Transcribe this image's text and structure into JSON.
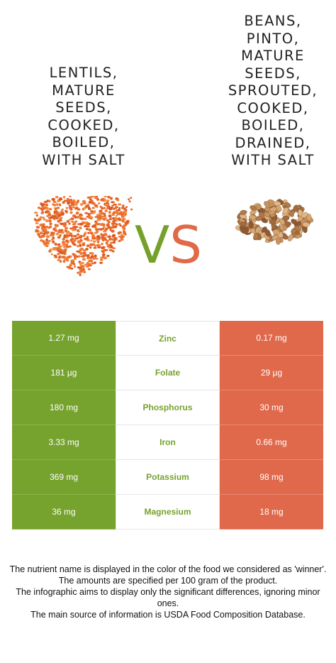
{
  "food_left": {
    "title": "LENTILS,\nMATURE\nSEEDS,\nCOOKED,\nBOILED,\nWITH SALT",
    "icon": "red-lentils-heart",
    "color": "#76a22e"
  },
  "food_right": {
    "title": "BEANS,\nPINTO,\nMATURE\nSEEDS,\nSPROUTED,\nCOOKED,\nBOILED,\nDRAINED,\nWITH SALT",
    "icon": "pinto-beans-pile",
    "color": "#e0694b"
  },
  "vs": {
    "v": "V",
    "s": "S"
  },
  "nutrients": [
    {
      "name": "Zinc",
      "left": "1.27 mg",
      "right": "0.17 mg"
    },
    {
      "name": "Folate",
      "left": "181 µg",
      "right": "29 µg"
    },
    {
      "name": "Phosphorus",
      "left": "180 mg",
      "right": "30 mg"
    },
    {
      "name": "Iron",
      "left": "3.33 mg",
      "right": "0.66 mg"
    },
    {
      "name": "Potassium",
      "left": "369 mg",
      "right": "98 mg"
    },
    {
      "name": "Magnesium",
      "left": "36 mg",
      "right": "18 mg"
    }
  ],
  "footer": {
    "line1": "The nutrient name is displayed in the color of the food we considered as 'winner'.",
    "line2": "The amounts are specified per 100 gram of the product.",
    "line3": "The infographic aims to display only the significant differences, ignoring minor ones.",
    "line4": "The main source of information is USDA Food Composition Database."
  }
}
